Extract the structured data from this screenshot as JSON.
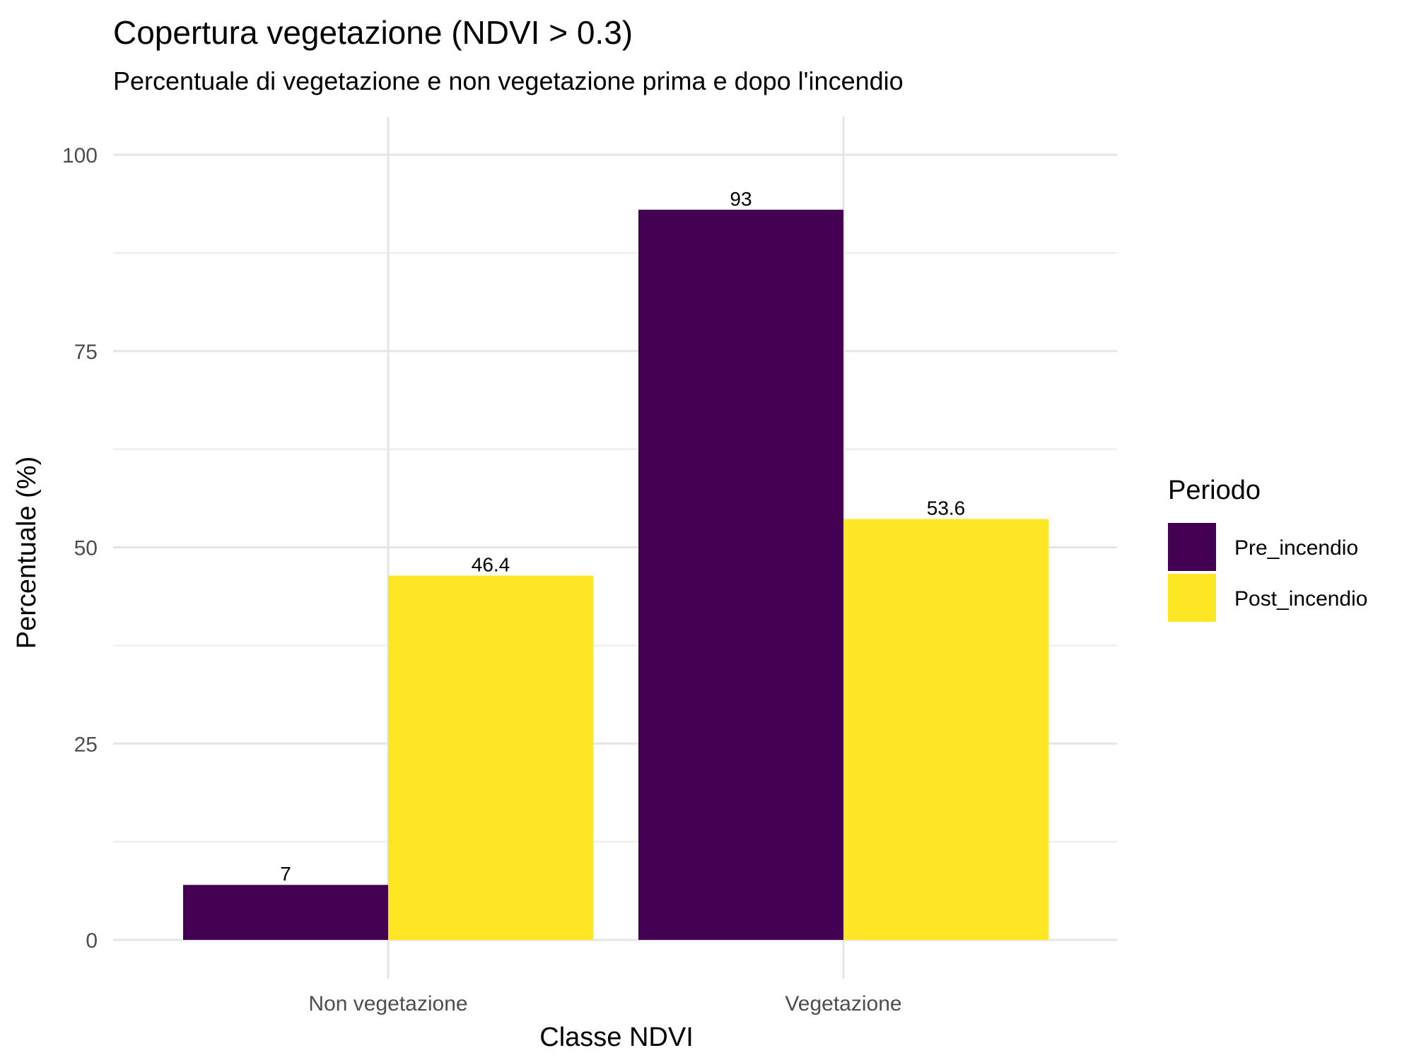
{
  "chart_data": {
    "type": "bar",
    "title": "Copertura vegetazione (NDVI > 0.3)",
    "subtitle": "Percentuale di vegetazione e non vegetazione prima e dopo l'incendio",
    "xlabel": "Classe NDVI",
    "ylabel": "Percentuale (%)",
    "categories": [
      "Non vegetazione",
      "Vegetazione"
    ],
    "series": [
      {
        "name": "Pre_incendio",
        "color": "#440154",
        "values": [
          7,
          93
        ],
        "labels": [
          "7",
          "93"
        ]
      },
      {
        "name": "Post_incendio",
        "color": "#FDE725",
        "values": [
          46.4,
          53.6
        ],
        "labels": [
          "46.4",
          "53.6"
        ]
      }
    ],
    "ylim": [
      0,
      100
    ],
    "yticks": [
      0,
      25,
      50,
      75,
      100
    ],
    "ytick_labels": [
      "0",
      "25",
      "50",
      "75",
      "100"
    ],
    "grid": true,
    "legend": {
      "title": "Periodo",
      "position": "right"
    }
  }
}
